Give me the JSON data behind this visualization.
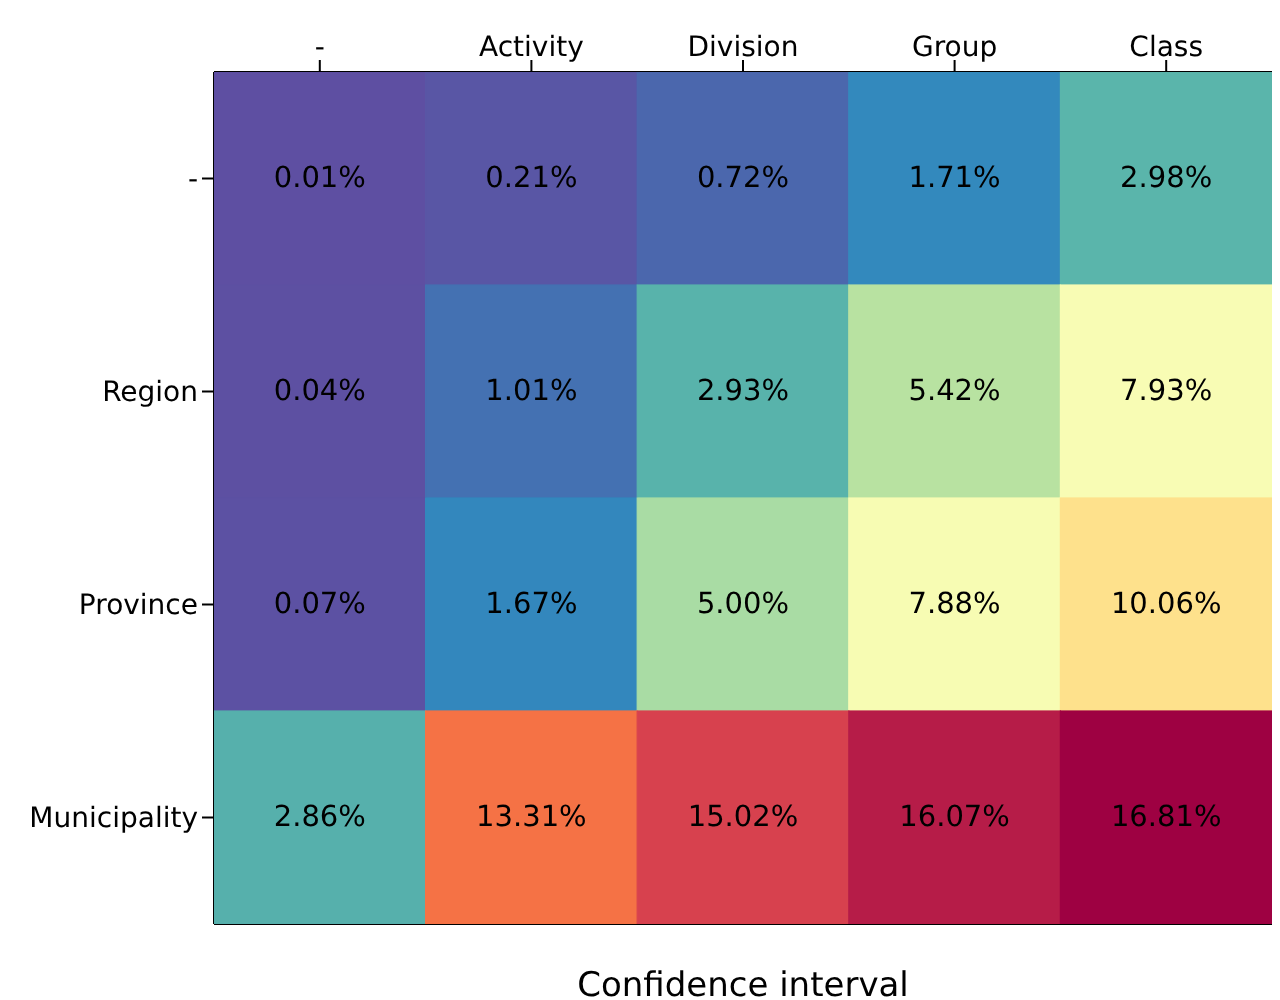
{
  "chart_data": {
    "type": "heatmap",
    "xlabel": "Confidence interval",
    "categories": [
      "-",
      "Activity",
      "Division",
      "Group",
      "Class"
    ],
    "y_categories": [
      "-",
      "Region",
      "Province",
      "Municipality"
    ],
    "cells": [
      [
        0.01,
        0.21,
        0.72,
        1.71,
        2.98
      ],
      [
        0.04,
        1.01,
        2.93,
        5.42,
        7.93
      ],
      [
        0.07,
        1.67,
        5.0,
        7.88,
        10.06
      ],
      [
        2.86,
        13.31,
        15.02,
        16.07,
        16.81
      ]
    ],
    "cell_labels": [
      [
        "0.01%",
        "0.21%",
        "0.72%",
        "1.71%",
        "2.98%"
      ],
      [
        "0.04%",
        "1.01%",
        "2.93%",
        "5.42%",
        "7.93%"
      ],
      [
        "0.07%",
        "1.67%",
        "5.00%",
        "7.88%",
        "10.06%"
      ],
      [
        "2.86%",
        "13.31%",
        "15.02%",
        "16.07%",
        "16.81%"
      ]
    ]
  }
}
